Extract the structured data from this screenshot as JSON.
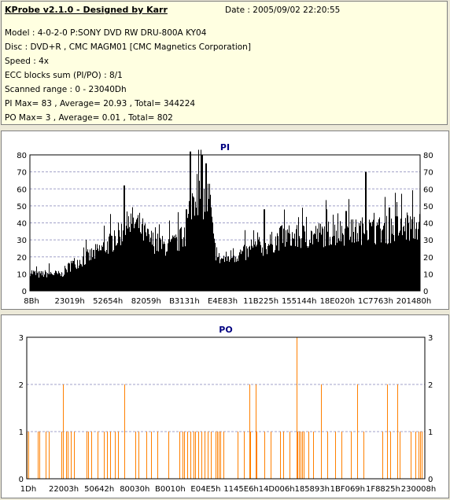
{
  "info": {
    "title": "KProbe v2.1.0 - Designed by Karr",
    "date": "Date : 2005/09/02 22:20:55",
    "lines": [
      "Model : 4-0-2-0 P:SONY    DVD RW DRU-800A  KY04",
      "Disc : DVD+R , CMC MAGM01 [CMC Magnetics Corporation]",
      "Speed : 4x",
      "ECC blocks sum (PI/PO) : 8/1",
      "Scanned range : 0 - 23040Dh",
      "PI Max= 83 , Average= 20.93 , Total= 344224",
      "PO Max= 3 , Average= 0.01 , Total= 802"
    ]
  },
  "colors": {
    "pi_bars": "#000000",
    "po_bars": "#ff8000",
    "title": "#000080",
    "grid": "#a0a0c8"
  },
  "chart_data": [
    {
      "type": "bar",
      "title": "PI",
      "ylim": [
        0,
        80
      ],
      "yticks": [
        0,
        10,
        20,
        30,
        40,
        50,
        60,
        70,
        80
      ],
      "xticklabels": [
        "8Bh",
        "23019h",
        "52654h",
        "82059h",
        "B3131h",
        "E4E83h",
        "11B225h",
        "155144h",
        "18E020h",
        "1C7763h",
        "201480h"
      ],
      "max": 83,
      "profile": [
        [
          0,
          12
        ],
        [
          0.02,
          10
        ],
        [
          0.05,
          11
        ],
        [
          0.08,
          10
        ],
        [
          0.09,
          13
        ],
        [
          0.11,
          17
        ],
        [
          0.14,
          20
        ],
        [
          0.17,
          24
        ],
        [
          0.2,
          29
        ],
        [
          0.22,
          33
        ],
        [
          0.24,
          38
        ],
        [
          0.26,
          43
        ],
        [
          0.28,
          40
        ],
        [
          0.3,
          33
        ],
        [
          0.32,
          30
        ],
        [
          0.34,
          28
        ],
        [
          0.36,
          28
        ],
        [
          0.38,
          31
        ],
        [
          0.4,
          35
        ],
        [
          0.41,
          55
        ],
        [
          0.43,
          62
        ],
        [
          0.45,
          55
        ],
        [
          0.46,
          58
        ],
        [
          0.47,
          30
        ],
        [
          0.48,
          20
        ],
        [
          0.5,
          20
        ],
        [
          0.52,
          22
        ],
        [
          0.54,
          23
        ],
        [
          0.56,
          24
        ],
        [
          0.58,
          27
        ],
        [
          0.6,
          28
        ],
        [
          0.62,
          30
        ],
        [
          0.64,
          33
        ],
        [
          0.66,
          34
        ],
        [
          0.68,
          33
        ],
        [
          0.7,
          34
        ],
        [
          0.72,
          34
        ],
        [
          0.74,
          35
        ],
        [
          0.76,
          36
        ],
        [
          0.78,
          36
        ],
        [
          0.8,
          37
        ],
        [
          0.82,
          36
        ],
        [
          0.84,
          37
        ],
        [
          0.86,
          38
        ],
        [
          0.88,
          37
        ],
        [
          0.9,
          38
        ],
        [
          0.92,
          38
        ],
        [
          0.94,
          39
        ],
        [
          0.96,
          39
        ],
        [
          1,
          40
        ]
      ],
      "spikes": [
        [
          0.4,
          48
        ],
        [
          0.41,
          82
        ],
        [
          0.44,
          80
        ],
        [
          0.45,
          75
        ],
        [
          0.86,
          70
        ],
        [
          0.24,
          62
        ],
        [
          0.6,
          48
        ],
        [
          0.76,
          48
        ],
        [
          0.81,
          47
        ],
        [
          0.92,
          49
        ]
      ]
    },
    {
      "type": "bar",
      "title": "PO",
      "ylim": [
        0,
        3
      ],
      "yticks": [
        0,
        1,
        2,
        3
      ],
      "xticklabels": [
        "1Dh",
        "22003h",
        "50642h",
        "80030h",
        "B0010h",
        "E04E5h",
        "1145E6h",
        "14D006h",
        "185893h",
        "1BF069h",
        "1F8825h",
        "230008h"
      ],
      "max": 3,
      "twos": [
        0.09,
        0.245,
        0.56,
        0.575,
        0.74,
        0.83,
        0.905,
        0.93
      ],
      "threes": [
        0.678
      ]
    }
  ]
}
